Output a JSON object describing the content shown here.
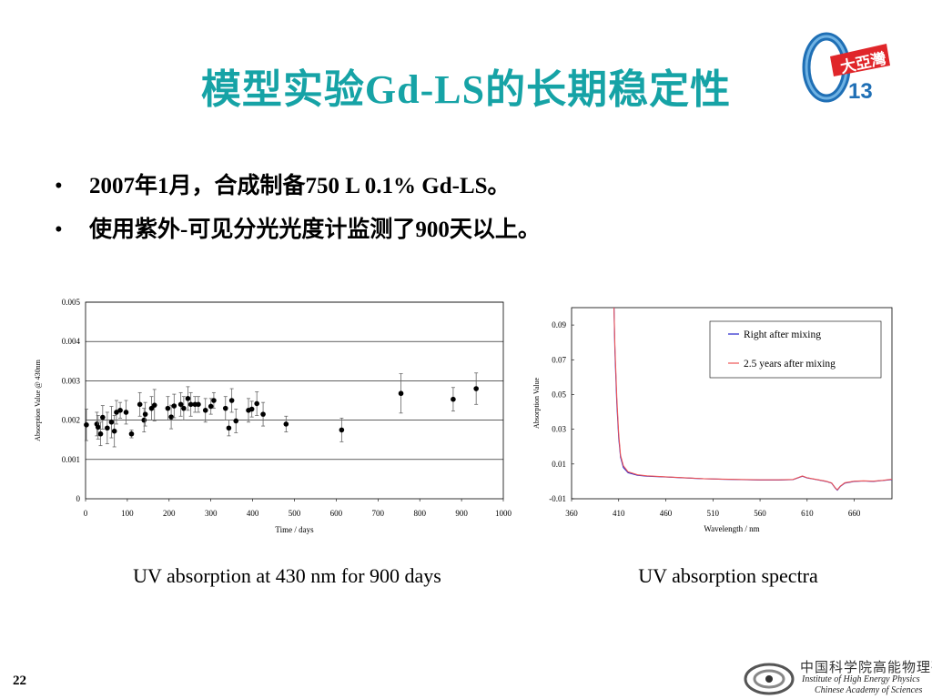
{
  "slide": {
    "title": "模型实验Gd-LS的长期稳定性",
    "bullets": [
      "2007年1月，合成制备750 L 0.1% Gd-LS。",
      "使用紫外-可见分光光度计监测了900天以上。"
    ],
    "bullet_glyph": "•",
    "page_number": "22"
  },
  "logo": {
    "number": "13",
    "badge_text": "大亞灣",
    "accent_color": "#e0262a",
    "ring_color": "#1f6fb5"
  },
  "institute": {
    "name_cn": "中国科学院高能物理研究所",
    "name_en_1": "Institute of High Energy Physics",
    "name_en_2": "Chinese Academy of Sciences"
  },
  "captions": {
    "left": "UV absorption at 430 nm for 900 days",
    "right": "UV absorption spectra"
  },
  "chart_data": [
    {
      "type": "scatter",
      "title": "",
      "xlabel": "Time / days",
      "ylabel": "Absorption Value @ 430nm",
      "xlim": [
        0,
        1000
      ],
      "ylim": [
        0,
        0.005
      ],
      "x_ticks": [
        0,
        100,
        200,
        300,
        400,
        500,
        600,
        700,
        800,
        900,
        1000
      ],
      "y_ticks": [
        "0",
        "0.001",
        "0.002",
        "0.003",
        "0.004",
        "0.005"
      ],
      "y_tick_values": [
        0,
        0.001,
        0.002,
        0.003,
        0.004,
        0.005
      ],
      "grid": "horizontal",
      "series": [
        {
          "marker_color": "#000000",
          "points": [
            {
              "x": 2,
              "y": 0.00188,
              "err": 0.0004
            },
            {
              "x": 27,
              "y": 0.0019,
              "err": 0.0003
            },
            {
              "x": 30,
              "y": 0.00182,
              "err": 0.0003
            },
            {
              "x": 36,
              "y": 0.00165,
              "err": 0.0003
            },
            {
              "x": 41,
              "y": 0.00207,
              "err": 0.0003
            },
            {
              "x": 52,
              "y": 0.0018,
              "err": 0.0004
            },
            {
              "x": 62,
              "y": 0.00195,
              "err": 0.0004
            },
            {
              "x": 69,
              "y": 0.00172,
              "err": 0.0004
            },
            {
              "x": 74,
              "y": 0.0022,
              "err": 0.0003
            },
            {
              "x": 83,
              "y": 0.00225,
              "err": 0.0002
            },
            {
              "x": 97,
              "y": 0.0022,
              "err": 0.0003
            },
            {
              "x": 110,
              "y": 0.00165,
              "err": 0.0001
            },
            {
              "x": 130,
              "y": 0.0024,
              "err": 0.0003
            },
            {
              "x": 140,
              "y": 0.002,
              "err": 0.0003
            },
            {
              "x": 143,
              "y": 0.00215,
              "err": 0.0003
            },
            {
              "x": 158,
              "y": 0.0023,
              "err": 0.0003
            },
            {
              "x": 165,
              "y": 0.00238,
              "err": 0.0004
            },
            {
              "x": 197,
              "y": 0.0023,
              "err": 0.0003
            },
            {
              "x": 205,
              "y": 0.00208,
              "err": 0.0003
            },
            {
              "x": 212,
              "y": 0.00236,
              "err": 0.0003
            },
            {
              "x": 228,
              "y": 0.0024,
              "err": 0.0003
            },
            {
              "x": 235,
              "y": 0.0023,
              "err": 0.0003
            },
            {
              "x": 245,
              "y": 0.00255,
              "err": 0.0003
            },
            {
              "x": 252,
              "y": 0.0024,
              "err": 0.0003
            },
            {
              "x": 262,
              "y": 0.0024,
              "err": 0.0002
            },
            {
              "x": 270,
              "y": 0.0024,
              "err": 0.0002
            },
            {
              "x": 287,
              "y": 0.00225,
              "err": 0.0003
            },
            {
              "x": 300,
              "y": 0.00235,
              "err": 0.0002
            },
            {
              "x": 307,
              "y": 0.0025,
              "err": 0.0002
            },
            {
              "x": 335,
              "y": 0.0023,
              "err": 0.0003
            },
            {
              "x": 343,
              "y": 0.0018,
              "err": 0.0002
            },
            {
              "x": 350,
              "y": 0.0025,
              "err": 0.0003
            },
            {
              "x": 360,
              "y": 0.00198,
              "err": 0.0003
            },
            {
              "x": 390,
              "y": 0.00225,
              "err": 0.0003
            },
            {
              "x": 398,
              "y": 0.00228,
              "err": 0.0002
            },
            {
              "x": 410,
              "y": 0.00242,
              "err": 0.0003
            },
            {
              "x": 425,
              "y": 0.00215,
              "err": 0.0003
            },
            {
              "x": 480,
              "y": 0.0019,
              "err": 0.0002
            },
            {
              "x": 613,
              "y": 0.00175,
              "err": 0.0003
            },
            {
              "x": 755,
              "y": 0.00268,
              "err": 0.0005
            },
            {
              "x": 880,
              "y": 0.00253,
              "err": 0.0003
            },
            {
              "x": 935,
              "y": 0.0028,
              "err": 0.0004
            }
          ]
        }
      ]
    },
    {
      "type": "line",
      "title": "",
      "xlabel": "Wavelength / nm",
      "ylabel": "Absorption Value",
      "xlim": [
        360,
        700
      ],
      "ylim": [
        -0.01,
        0.1
      ],
      "x_ticks": [
        360,
        410,
        460,
        510,
        560,
        610,
        660
      ],
      "y_ticks": [
        "-0.01",
        "0.01",
        "0.03",
        "0.05",
        "0.07",
        "0.09"
      ],
      "y_tick_values": [
        -0.01,
        0.01,
        0.03,
        0.05,
        0.07,
        0.09
      ],
      "grid": "none",
      "legend_position": "top-right",
      "series": [
        {
          "name": "Right after mixing",
          "color": "#2222cc",
          "x": [
            405,
            406,
            408,
            410,
            412,
            415,
            420,
            430,
            440,
            460,
            480,
            500,
            520,
            540,
            560,
            580,
            595,
            600,
            605,
            610,
            620,
            630,
            636,
            640,
            642,
            645,
            650,
            660,
            670,
            680,
            690,
            700
          ],
          "y": [
            0.1,
            0.075,
            0.045,
            0.025,
            0.014,
            0.008,
            0.005,
            0.0035,
            0.003,
            0.0025,
            0.002,
            0.0015,
            0.0012,
            0.001,
            0.0008,
            0.0008,
            0.001,
            0.002,
            0.003,
            0.002,
            0.001,
            0.0,
            -0.001,
            -0.004,
            -0.005,
            -0.003,
            -0.001,
            0.0,
            0.0002,
            0.0,
            0.0005,
            0.001
          ]
        },
        {
          "name": "2.5 years after mixing",
          "color": "#ee5555",
          "x": [
            405,
            406,
            408,
            410,
            412,
            415,
            420,
            430,
            440,
            460,
            480,
            500,
            520,
            540,
            560,
            580,
            595,
            600,
            605,
            610,
            620,
            630,
            636,
            640,
            642,
            645,
            650,
            660,
            670,
            680,
            690,
            700
          ],
          "y": [
            0.1,
            0.078,
            0.048,
            0.027,
            0.015,
            0.009,
            0.0055,
            0.0038,
            0.0032,
            0.0026,
            0.0021,
            0.0016,
            0.0013,
            0.0011,
            0.0009,
            0.0009,
            0.0011,
            0.0021,
            0.0031,
            0.0021,
            0.0011,
            0.0001,
            -0.0009,
            -0.0038,
            -0.0048,
            -0.0028,
            -0.0008,
            0.0001,
            0.0003,
            0.0001,
            0.0006,
            0.0012
          ]
        }
      ]
    }
  ]
}
